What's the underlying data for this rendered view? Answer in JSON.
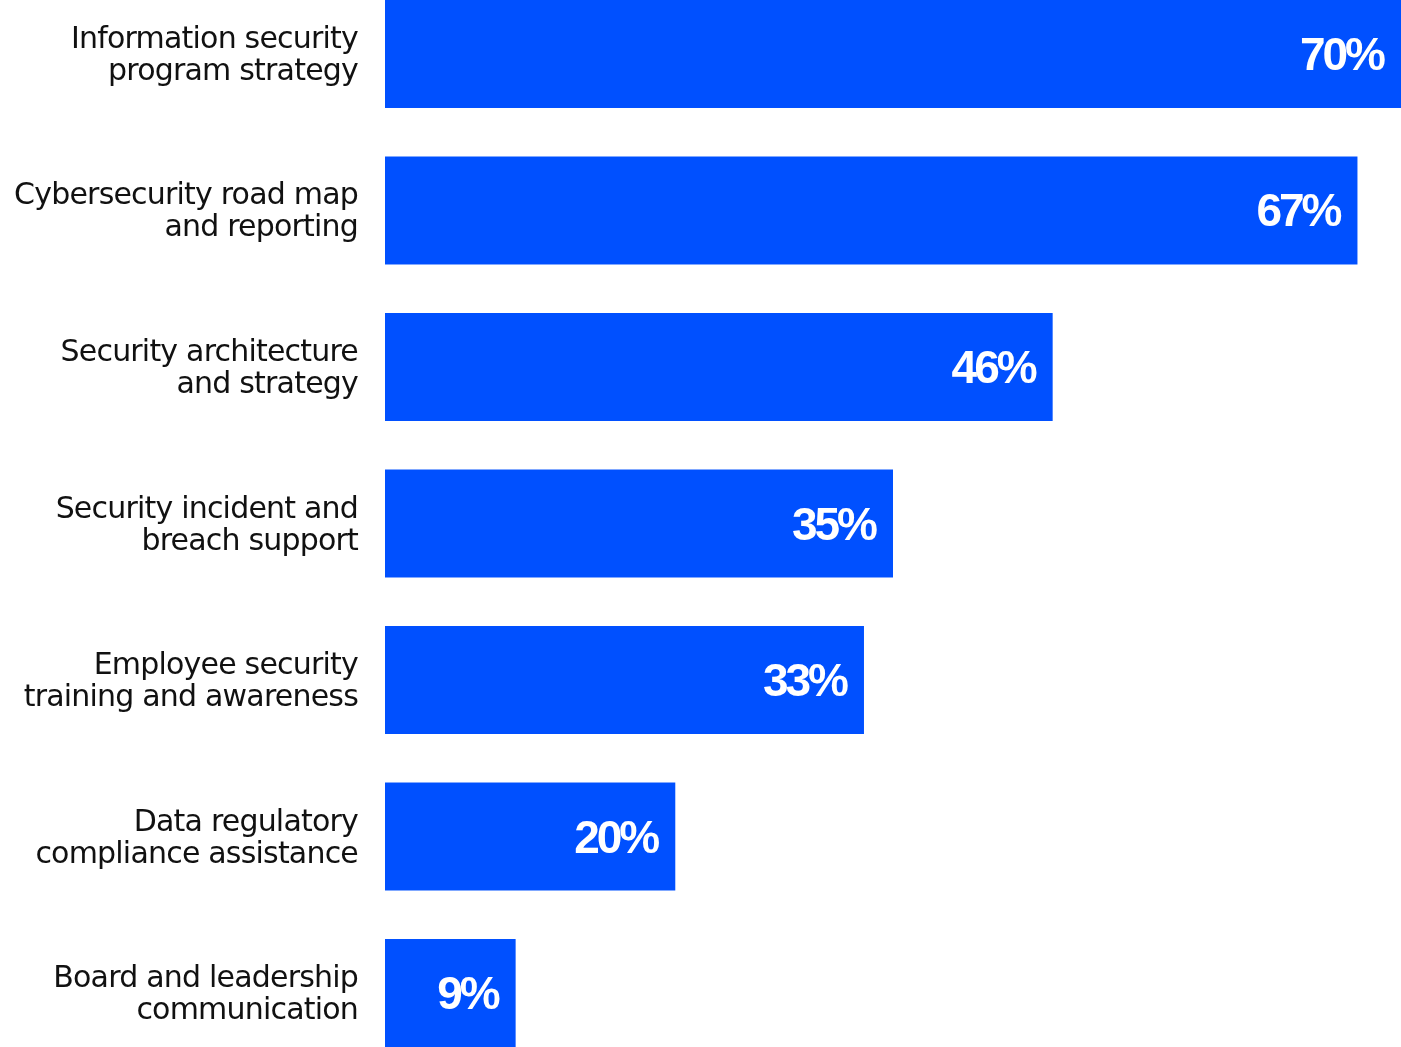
{
  "chart_data": {
    "type": "bar",
    "orientation": "horizontal",
    "categories": [
      "Information security program strategy",
      "Cybersecurity road map and reporting",
      "Security architecture and strategy",
      "Security incident and breach support",
      "Employee security training and awareness",
      "Data regulatory compliance assistance",
      "Board and leadership communication"
    ],
    "values": [
      70,
      67,
      46,
      35,
      33,
      20,
      9
    ],
    "value_labels": [
      "70%",
      "67%",
      "46%",
      "35%",
      "33%",
      "20%",
      "9%"
    ],
    "color": "#0050ff"
  }
}
